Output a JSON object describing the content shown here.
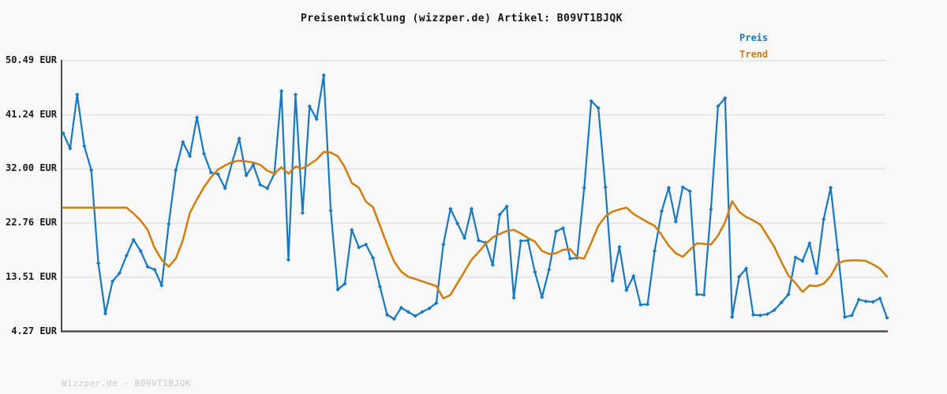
{
  "title": "Preisentwicklung (wizzper.de) Artikel: B09VT1BJQK",
  "legend": {
    "preis_label": "Preis",
    "trend_label": "Trend"
  },
  "footer": "Wizzper.de - B09VT1BJQK",
  "colors": {
    "background": "#f8f8f8",
    "preis": "#1778be",
    "trend": "#cf7d0d",
    "grid": "#e1e1e1",
    "axis": "#4d4d4d",
    "title_text": "#141414",
    "tick_text": "#1a1a1a",
    "footer_text": "#c9c9c9"
  },
  "chart_data": {
    "type": "line",
    "title": "Preisentwicklung (wizzper.de) Artikel: B09VT1BJQK",
    "xlabel": "",
    "ylabel": "EUR",
    "ylim": [
      4.27,
      50.49
    ],
    "grid": "horizontal",
    "legend_position": "top-right",
    "y_ticks": [
      "50.49 EUR",
      "41.24 EUR",
      "32.00 EUR",
      "22.76 EUR",
      "13.51 EUR",
      "4.27 EUR"
    ],
    "y_tick_values": [
      50.49,
      41.24,
      32.0,
      22.76,
      13.51,
      4.27
    ],
    "series": [
      {
        "name": "Preis",
        "color": "#1778be",
        "markers": true,
        "width": 2.2,
        "values": [
          38.1,
          35.5,
          44.7,
          35.9,
          31.8,
          15.9,
          7.3,
          12.8,
          14.2,
          17.2,
          19.9,
          18.0,
          15.3,
          14.8,
          12.1,
          22.6,
          31.8,
          36.6,
          34.2,
          40.8,
          34.6,
          31.4,
          31.1,
          28.7,
          33.1,
          37.2,
          30.9,
          32.7,
          29.3,
          28.7,
          31.2,
          45.3,
          16.5,
          44.7,
          24.5,
          42.7,
          40.5,
          48.0,
          24.9,
          11.4,
          12.4,
          21.6,
          18.6,
          19.1,
          16.8,
          11.9,
          7.1,
          6.4,
          8.3,
          7.6,
          6.9,
          7.6,
          8.2,
          9.1,
          19.1,
          25.2,
          22.7,
          20.2,
          25.2,
          19.8,
          19.4,
          15.6,
          24.2,
          25.6,
          10.0,
          19.7,
          19.8,
          14.4,
          10.1,
          14.8,
          21.3,
          21.9,
          16.7,
          16.8,
          28.8,
          43.6,
          42.4,
          28.9,
          12.9,
          18.7,
          11.3,
          13.7,
          8.8,
          8.9,
          18.0,
          24.8,
          28.8,
          23.0,
          28.9,
          28.2,
          10.6,
          10.5,
          25.1,
          42.7,
          44.1,
          6.7,
          13.6,
          15.0,
          7.1,
          7.0,
          7.2,
          7.9,
          9.2,
          10.6,
          16.9,
          16.3,
          19.3,
          14.2,
          23.4,
          28.8,
          18.2,
          6.7,
          7.0,
          9.7,
          9.4,
          9.3,
          9.9,
          6.6
        ]
      },
      {
        "name": "Trend",
        "color": "#cf7d0d",
        "markers": false,
        "width": 2.5,
        "values": [
          25.4,
          25.4,
          25.4,
          25.4,
          25.4,
          25.4,
          25.4,
          25.4,
          25.4,
          25.4,
          24.4,
          23.2,
          21.6,
          18.5,
          16.5,
          15.3,
          16.7,
          19.8,
          24.5,
          26.8,
          28.9,
          30.6,
          31.9,
          32.6,
          33.2,
          33.4,
          33.3,
          33.1,
          32.7,
          31.7,
          31.2,
          32.3,
          31.2,
          32.4,
          32.1,
          32.8,
          33.6,
          34.9,
          34.8,
          34.2,
          32.3,
          29.6,
          28.8,
          26.4,
          25.5,
          22.3,
          19.1,
          16.2,
          14.5,
          13.6,
          13.2,
          12.8,
          12.4,
          12.0,
          9.9,
          10.5,
          12.5,
          14.5,
          16.5,
          17.8,
          19.2,
          20.3,
          20.9,
          21.4,
          21.6,
          21.0,
          20.2,
          19.6,
          18.0,
          17.5,
          17.6,
          18.2,
          18.3,
          16.9,
          16.7,
          19.4,
          22.3,
          23.9,
          24.7,
          25.1,
          25.4,
          24.3,
          23.6,
          22.9,
          22.3,
          20.7,
          18.9,
          17.6,
          17.0,
          18.2,
          19.3,
          19.2,
          19.1,
          20.6,
          22.9,
          26.5,
          24.7,
          23.8,
          23.2,
          22.5,
          20.6,
          18.7,
          16.1,
          13.8,
          12.5,
          11.0,
          12.1,
          12.0,
          12.4,
          13.7,
          15.9,
          16.3,
          16.4,
          16.4,
          16.3,
          15.7,
          15.0,
          13.6
        ]
      }
    ]
  }
}
